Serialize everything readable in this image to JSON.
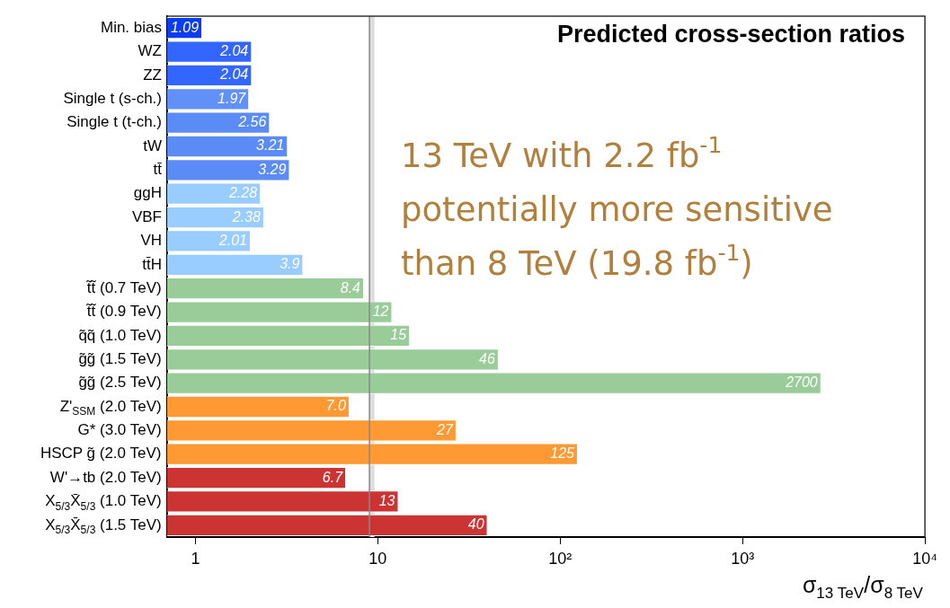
{
  "chart_data": {
    "type": "bar",
    "orientation": "horizontal",
    "title": "Predicted cross-section ratios",
    "xlabel": "σ$_{13 TeV}$/σ$_{8 TeV}$",
    "categories": [
      "Min. bias",
      "WZ",
      "ZZ",
      "Single t (s-ch.)",
      "Single t (t-ch.)",
      "tW",
      "tt̄",
      "ggH",
      "VBF",
      "VH",
      "tt̄H",
      "t̃t̃ (0.7 TeV)",
      "t̃t̃ (0.9 TeV)",
      "q̃q̃ (1.0 TeV)",
      "g̃g̃ (1.5 TeV)",
      "g̃g̃ (2.5 TeV)",
      "Z'$_{SSM}$ (2.0 TeV)",
      "G* (3.0 TeV)",
      "HSCP g̃ (2.0 TeV)",
      "W'→tb (2.0 TeV)",
      "X$_{5/3}$X̄$_{5/3}$ (1.0 TeV)",
      "X$_{5/3}$X̄$_{5/3}$ (1.5 TeV)"
    ],
    "values": [
      1.09,
      2.04,
      2.04,
      1.97,
      2.56,
      3.21,
      3.29,
      2.28,
      2.38,
      2.01,
      3.9,
      8.4,
      12,
      15,
      46,
      2700,
      7.0,
      27,
      125,
      6.7,
      13,
      40
    ],
    "value_labels": [
      "1.09",
      "2.04",
      "2.04",
      "1.97",
      "2.56",
      "3.21",
      "3.29",
      "2.28",
      "2.38",
      "2.01",
      "3.9",
      "8.4",
      "12",
      "15",
      "46",
      "2700",
      "7.0",
      "27",
      "125",
      "6.7",
      "13",
      "40"
    ],
    "colors": [
      "#0a3cf0",
      "#3366ff",
      "#3366ff",
      "#6090f8",
      "#5b8cf5",
      "#5b8cf5",
      "#5b8cf5",
      "#99ccff",
      "#99ccff",
      "#99ccff",
      "#99ccff",
      "#99cc99",
      "#99cc99",
      "#99cc99",
      "#99cc99",
      "#99cc99",
      "#ff9933",
      "#ff9933",
      "#ff9933",
      "#cc3333",
      "#cc3333",
      "#cc3333"
    ],
    "log": "x",
    "xlim": [
      0.7,
      10000
    ],
    "xticks": [
      1,
      10,
      {
        "value": 100,
        "label": "10²"
      },
      {
        "value": 1000,
        "label": "10³"
      },
      {
        "value": 10000,
        "label": "10⁴"
      }
    ],
    "ref_lines": [
      {
        "axis": "x",
        "value": 9,
        "color": "#888888"
      }
    ],
    "bands": [
      {
        "axis": "x",
        "from": 9,
        "to": 9.6,
        "color": "#dddddd"
      }
    ],
    "annotations": [
      "13 TeV with 2.2 fb$^{-1}$",
      "potentially more sensitive",
      "than 8 TeV (19.8 fb$^{-1}$)"
    ],
    "grid": false,
    "legend": false
  }
}
